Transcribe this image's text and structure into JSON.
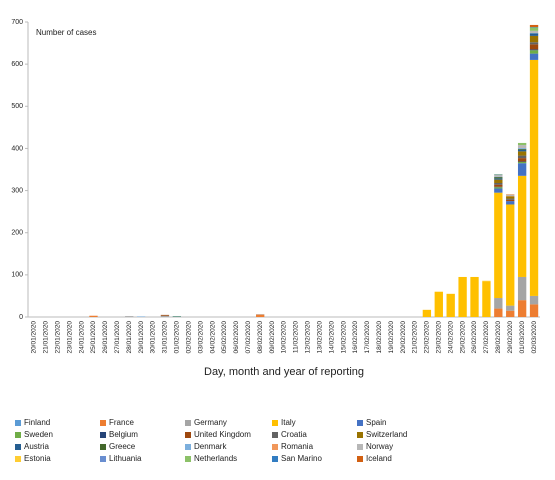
{
  "chart_data": {
    "type": "bar",
    "stacked": true,
    "y_label": "Number of cases",
    "x_label": "Day, month and year of reporting",
    "categories": [
      "20/01/2020",
      "21/01/2020",
      "22/01/2020",
      "23/01/2020",
      "24/01/2020",
      "25/01/2020",
      "26/01/2020",
      "27/01/2020",
      "28/01/2020",
      "29/01/2020",
      "30/01/2020",
      "31/01/2020",
      "01/02/2020",
      "02/02/2020",
      "03/02/2020",
      "04/02/2020",
      "05/02/2020",
      "06/02/2020",
      "07/02/2020",
      "08/02/2020",
      "09/02/2020",
      "10/02/2020",
      "11/02/2020",
      "12/02/2020",
      "13/02/2020",
      "14/02/2020",
      "15/02/2020",
      "16/02/2020",
      "17/02/2020",
      "18/02/2020",
      "19/02/2020",
      "20/02/2020",
      "21/02/2020",
      "22/02/2020",
      "23/02/2020",
      "24/02/2020",
      "25/02/2020",
      "26/02/2020",
      "27/02/2020",
      "28/02/2020",
      "29/02/2020",
      "01/03/2020",
      "02/03/2020"
    ],
    "ylim": [
      0,
      700
    ],
    "yticks": [
      0,
      100,
      200,
      300,
      400,
      500,
      600,
      700
    ],
    "series": [
      {
        "name": "Finland",
        "color": "#5b9bd5",
        "values": [
          0,
          0,
          0,
          0,
          0,
          0,
          0,
          0,
          0,
          1,
          0,
          0,
          0,
          0,
          0,
          0,
          0,
          0,
          0,
          0,
          0,
          0,
          0,
          0,
          0,
          0,
          0,
          0,
          0,
          0,
          0,
          0,
          0,
          0,
          0,
          0,
          0,
          0,
          0,
          0,
          0,
          0,
          0
        ]
      },
      {
        "name": "France",
        "color": "#ed7d31",
        "values": [
          0,
          0,
          0,
          0,
          0,
          3,
          0,
          0,
          0,
          0,
          0,
          0,
          0,
          0,
          0,
          0,
          0,
          0,
          0,
          5,
          0,
          0,
          0,
          0,
          0,
          0,
          0,
          0,
          0,
          0,
          0,
          0,
          0,
          0,
          0,
          0,
          0,
          0,
          0,
          20,
          15,
          40,
          30
        ]
      },
      {
        "name": "Germany",
        "color": "#a5a5a5",
        "values": [
          0,
          0,
          0,
          0,
          0,
          0,
          0,
          0,
          2,
          0,
          0,
          3,
          0,
          0,
          0,
          0,
          0,
          0,
          0,
          0,
          0,
          0,
          0,
          0,
          0,
          0,
          0,
          0,
          0,
          0,
          0,
          0,
          0,
          0,
          0,
          0,
          0,
          0,
          0,
          25,
          12,
          55,
          20
        ]
      },
      {
        "name": "Italy",
        "color": "#ffc000",
        "values": [
          0,
          0,
          0,
          0,
          0,
          0,
          0,
          0,
          0,
          0,
          0,
          0,
          0,
          0,
          0,
          0,
          0,
          0,
          0,
          0,
          0,
          0,
          0,
          0,
          0,
          0,
          0,
          0,
          0,
          0,
          0,
          0,
          0,
          17,
          60,
          55,
          95,
          95,
          85,
          250,
          240,
          240,
          560
        ]
      },
      {
        "name": "Spain",
        "color": "#4472c4",
        "values": [
          0,
          0,
          0,
          0,
          0,
          0,
          0,
          0,
          0,
          0,
          0,
          0,
          1,
          0,
          0,
          0,
          0,
          0,
          0,
          0,
          0,
          0,
          0,
          0,
          0,
          0,
          0,
          0,
          0,
          0,
          0,
          0,
          0,
          0,
          0,
          0,
          0,
          0,
          0,
          10,
          8,
          30,
          15
        ]
      },
      {
        "name": "Sweden",
        "color": "#70ad47",
        "values": [
          0,
          0,
          0,
          0,
          0,
          0,
          0,
          0,
          0,
          0,
          0,
          0,
          1,
          0,
          0,
          0,
          0,
          0,
          0,
          0,
          0,
          0,
          0,
          0,
          0,
          0,
          0,
          0,
          0,
          0,
          0,
          0,
          0,
          0,
          0,
          0,
          0,
          0,
          0,
          3,
          0,
          3,
          8
        ]
      },
      {
        "name": "Belgium",
        "color": "#264478",
        "values": [
          0,
          0,
          0,
          0,
          0,
          0,
          0,
          0,
          0,
          0,
          0,
          0,
          0,
          0,
          0,
          0,
          0,
          0,
          0,
          0,
          0,
          0,
          0,
          0,
          0,
          0,
          0,
          0,
          0,
          0,
          0,
          0,
          0,
          0,
          0,
          0,
          0,
          0,
          0,
          1,
          0,
          1,
          2
        ]
      },
      {
        "name": "United Kingdom",
        "color": "#9e480e",
        "values": [
          0,
          0,
          0,
          0,
          0,
          0,
          0,
          0,
          0,
          0,
          0,
          2,
          0,
          0,
          0,
          0,
          0,
          0,
          0,
          1,
          0,
          0,
          0,
          0,
          0,
          0,
          0,
          0,
          0,
          0,
          0,
          0,
          0,
          0,
          0,
          0,
          0,
          0,
          0,
          5,
          3,
          8,
          12
        ]
      },
      {
        "name": "Croatia",
        "color": "#636363",
        "values": [
          0,
          0,
          0,
          0,
          0,
          0,
          0,
          0,
          0,
          0,
          0,
          0,
          0,
          0,
          0,
          0,
          0,
          0,
          0,
          0,
          0,
          0,
          0,
          0,
          0,
          0,
          0,
          0,
          0,
          0,
          0,
          0,
          0,
          0,
          0,
          0,
          0,
          0,
          0,
          4,
          3,
          6,
          5
        ]
      },
      {
        "name": "Switzerland",
        "color": "#997300",
        "values": [
          0,
          0,
          0,
          0,
          0,
          0,
          0,
          0,
          0,
          0,
          0,
          0,
          0,
          0,
          0,
          0,
          0,
          0,
          0,
          0,
          0,
          0,
          0,
          0,
          0,
          0,
          0,
          0,
          0,
          0,
          0,
          0,
          0,
          0,
          0,
          0,
          0,
          0,
          0,
          8,
          5,
          10,
          15
        ]
      },
      {
        "name": "Austria",
        "color": "#255e91",
        "values": [
          0,
          0,
          0,
          0,
          0,
          0,
          0,
          0,
          0,
          0,
          0,
          0,
          0,
          0,
          0,
          0,
          0,
          0,
          0,
          0,
          0,
          0,
          0,
          0,
          0,
          0,
          0,
          0,
          0,
          0,
          0,
          0,
          0,
          0,
          0,
          0,
          0,
          0,
          0,
          3,
          0,
          4,
          6
        ]
      },
      {
        "name": "Greece",
        "color": "#43682b",
        "values": [
          0,
          0,
          0,
          0,
          0,
          0,
          0,
          0,
          0,
          0,
          0,
          0,
          0,
          0,
          0,
          0,
          0,
          0,
          0,
          0,
          0,
          0,
          0,
          0,
          0,
          0,
          0,
          0,
          0,
          0,
          0,
          0,
          0,
          0,
          0,
          0,
          0,
          0,
          0,
          3,
          0,
          2,
          0
        ]
      },
      {
        "name": "Denmark",
        "color": "#7cafdd",
        "values": [
          0,
          0,
          0,
          0,
          0,
          0,
          0,
          0,
          0,
          0,
          0,
          0,
          0,
          0,
          0,
          0,
          0,
          0,
          0,
          0,
          0,
          0,
          0,
          0,
          0,
          0,
          0,
          0,
          0,
          0,
          0,
          0,
          0,
          0,
          0,
          0,
          0,
          0,
          0,
          1,
          0,
          3,
          1
        ]
      },
      {
        "name": "Romania",
        "color": "#f1975a",
        "values": [
          0,
          0,
          0,
          0,
          0,
          0,
          0,
          0,
          0,
          0,
          0,
          0,
          0,
          0,
          0,
          0,
          0,
          0,
          0,
          0,
          0,
          0,
          0,
          0,
          0,
          0,
          0,
          0,
          0,
          0,
          0,
          0,
          0,
          0,
          0,
          0,
          0,
          0,
          0,
          0,
          1,
          1,
          0
        ]
      },
      {
        "name": "Norway",
        "color": "#b7b7b7",
        "values": [
          0,
          0,
          0,
          0,
          0,
          0,
          0,
          0,
          0,
          0,
          0,
          0,
          0,
          0,
          0,
          0,
          0,
          0,
          0,
          0,
          0,
          0,
          0,
          0,
          0,
          0,
          0,
          0,
          0,
          0,
          0,
          0,
          0,
          0,
          0,
          0,
          0,
          0,
          0,
          4,
          3,
          5,
          5
        ]
      },
      {
        "name": "Estonia",
        "color": "#ffcd33",
        "values": [
          0,
          0,
          0,
          0,
          0,
          0,
          0,
          0,
          0,
          0,
          0,
          0,
          0,
          0,
          0,
          0,
          0,
          0,
          0,
          0,
          0,
          0,
          0,
          0,
          0,
          0,
          0,
          0,
          0,
          0,
          0,
          0,
          0,
          0,
          0,
          0,
          0,
          0,
          1,
          0,
          0,
          0,
          0
        ]
      },
      {
        "name": "Lithuania",
        "color": "#698ed0",
        "values": [
          0,
          0,
          0,
          0,
          0,
          0,
          0,
          0,
          0,
          0,
          0,
          0,
          0,
          0,
          0,
          0,
          0,
          0,
          0,
          0,
          0,
          0,
          0,
          0,
          0,
          0,
          0,
          0,
          0,
          0,
          0,
          0,
          0,
          0,
          0,
          0,
          0,
          0,
          0,
          1,
          0,
          0,
          0
        ]
      },
      {
        "name": "Netherlands",
        "color": "#8cc168",
        "values": [
          0,
          0,
          0,
          0,
          0,
          0,
          0,
          0,
          0,
          0,
          0,
          0,
          0,
          0,
          0,
          0,
          0,
          0,
          0,
          0,
          0,
          0,
          0,
          0,
          0,
          0,
          0,
          0,
          0,
          0,
          0,
          0,
          0,
          0,
          0,
          0,
          0,
          0,
          0,
          1,
          0,
          5,
          8
        ]
      },
      {
        "name": "San Marino",
        "color": "#327dc2",
        "values": [
          0,
          0,
          0,
          0,
          0,
          0,
          0,
          0,
          0,
          0,
          0,
          0,
          0,
          0,
          0,
          0,
          0,
          0,
          0,
          0,
          0,
          0,
          0,
          0,
          0,
          0,
          0,
          0,
          0,
          0,
          0,
          0,
          0,
          0,
          0,
          0,
          0,
          0,
          0,
          0,
          0,
          0,
          1
        ]
      },
      {
        "name": "Iceland",
        "color": "#d26012",
        "values": [
          0,
          0,
          0,
          0,
          0,
          0,
          0,
          0,
          0,
          0,
          0,
          0,
          0,
          0,
          0,
          0,
          0,
          0,
          0,
          0,
          0,
          0,
          0,
          0,
          0,
          0,
          0,
          0,
          0,
          0,
          0,
          0,
          0,
          0,
          0,
          0,
          0,
          0,
          0,
          0,
          1,
          0,
          5
        ]
      }
    ]
  }
}
